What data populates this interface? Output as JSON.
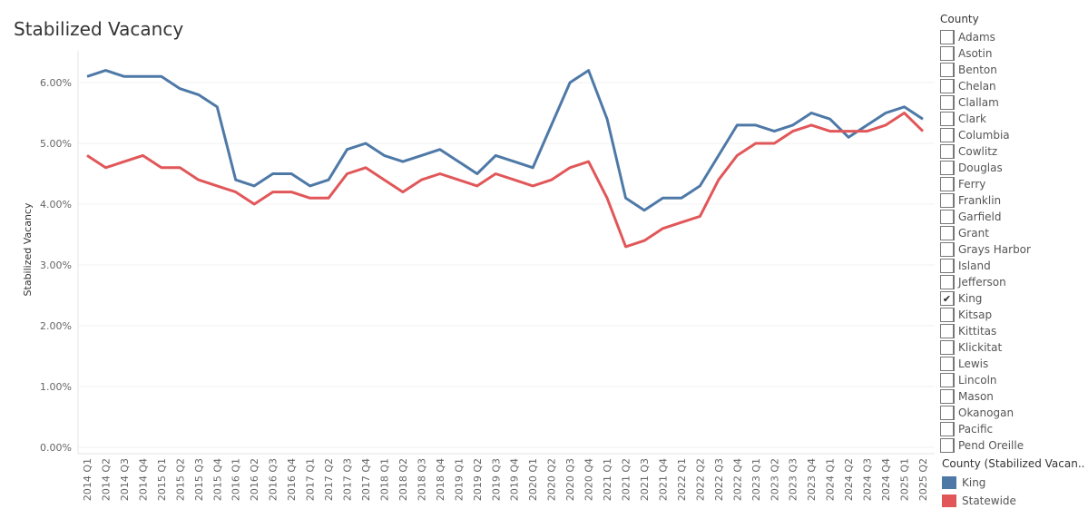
{
  "legend": {
    "title": "County",
    "items": [
      {
        "label": "Adams",
        "checked": false
      },
      {
        "label": "Asotin",
        "checked": false
      },
      {
        "label": "Benton",
        "checked": false
      },
      {
        "label": "Chelan",
        "checked": false
      },
      {
        "label": "Clallam",
        "checked": false
      },
      {
        "label": "Clark",
        "checked": false
      },
      {
        "label": "Columbia",
        "checked": false
      },
      {
        "label": "Cowlitz",
        "checked": false
      },
      {
        "label": "Douglas",
        "checked": false
      },
      {
        "label": "Ferry",
        "checked": false
      },
      {
        "label": "Franklin",
        "checked": false
      },
      {
        "label": "Garfield",
        "checked": false
      },
      {
        "label": "Grant",
        "checked": false
      },
      {
        "label": "Grays Harbor",
        "checked": false
      },
      {
        "label": "Island",
        "checked": false
      },
      {
        "label": "Jefferson",
        "checked": false
      },
      {
        "label": "King",
        "checked": true
      },
      {
        "label": "Kitsap",
        "checked": false
      },
      {
        "label": "Kittitas",
        "checked": false
      },
      {
        "label": "Klickitat",
        "checked": false
      },
      {
        "label": "Lewis",
        "checked": false
      },
      {
        "label": "Lincoln",
        "checked": false
      },
      {
        "label": "Mason",
        "checked": false
      },
      {
        "label": "Okanogan",
        "checked": false
      },
      {
        "label": "Pacific",
        "checked": false
      },
      {
        "label": "Pend Oreille",
        "checked": false
      }
    ],
    "check_mark": "✔"
  },
  "color_legend": {
    "title": "County (Stabilized Vacan..",
    "items": [
      {
        "label": "King",
        "color": "#4e79a7"
      },
      {
        "label": "Statewide",
        "color": "#e15759"
      }
    ]
  },
  "chart_data": {
    "type": "line",
    "title": "Stabilized Vacancy",
    "xlabel": "",
    "ylabel": "Stabilized Vacancy",
    "ylim": [
      0,
      6.3
    ],
    "yticks": [
      0,
      1,
      2,
      3,
      4,
      5,
      6
    ],
    "ytick_labels": [
      "0.00%",
      "1.00%",
      "2.00%",
      "3.00%",
      "4.00%",
      "5.00%",
      "6.00%"
    ],
    "grid": true,
    "categories": [
      "2014 Q1",
      "2014 Q2",
      "2014 Q3",
      "2014 Q4",
      "2015 Q1",
      "2015 Q2",
      "2015 Q3",
      "2015 Q4",
      "2016 Q1",
      "2016 Q2",
      "2016 Q3",
      "2016 Q4",
      "2017 Q1",
      "2017 Q2",
      "2017 Q3",
      "2017 Q4",
      "2018 Q1",
      "2018 Q2",
      "2018 Q3",
      "2018 Q4",
      "2019 Q1",
      "2019 Q2",
      "2019 Q3",
      "2019 Q4",
      "2020 Q1",
      "2020 Q2",
      "2020 Q3",
      "2020 Q4",
      "2021 Q1",
      "2021 Q2",
      "2021 Q3",
      "2021 Q4",
      "2022 Q1",
      "2022 Q2",
      "2022 Q3",
      "2022 Q4",
      "2023 Q1",
      "2023 Q2",
      "2023 Q3",
      "2023 Q4",
      "2024 Q1",
      "2024 Q2",
      "2024 Q3",
      "2024 Q4",
      "2025 Q1",
      "2025 Q2"
    ],
    "series": [
      {
        "name": "King",
        "color": "#4e79a7",
        "values": [
          6.1,
          6.2,
          6.1,
          6.1,
          6.1,
          5.9,
          5.8,
          5.6,
          4.4,
          4.3,
          4.5,
          4.5,
          4.3,
          4.4,
          4.9,
          5.0,
          4.8,
          4.7,
          4.8,
          4.9,
          4.7,
          4.5,
          4.8,
          4.7,
          4.6,
          5.3,
          6.0,
          6.2,
          5.4,
          4.1,
          3.9,
          4.1,
          4.1,
          4.3,
          4.8,
          5.3,
          5.3,
          5.2,
          5.3,
          5.5,
          5.4,
          5.1,
          5.3,
          5.5,
          5.6,
          5.4
        ]
      },
      {
        "name": "Statewide",
        "color": "#e15759",
        "values": [
          4.8,
          4.6,
          4.7,
          4.8,
          4.6,
          4.6,
          4.4,
          4.3,
          4.2,
          4.0,
          4.2,
          4.2,
          4.1,
          4.1,
          4.5,
          4.6,
          4.4,
          4.2,
          4.4,
          4.5,
          4.4,
          4.3,
          4.5,
          4.4,
          4.3,
          4.4,
          4.6,
          4.7,
          4.1,
          3.3,
          3.4,
          3.6,
          3.7,
          3.8,
          4.4,
          4.8,
          5.0,
          5.0,
          5.2,
          5.3,
          5.2,
          5.2,
          5.2,
          5.3,
          5.5,
          5.2
        ]
      }
    ]
  }
}
